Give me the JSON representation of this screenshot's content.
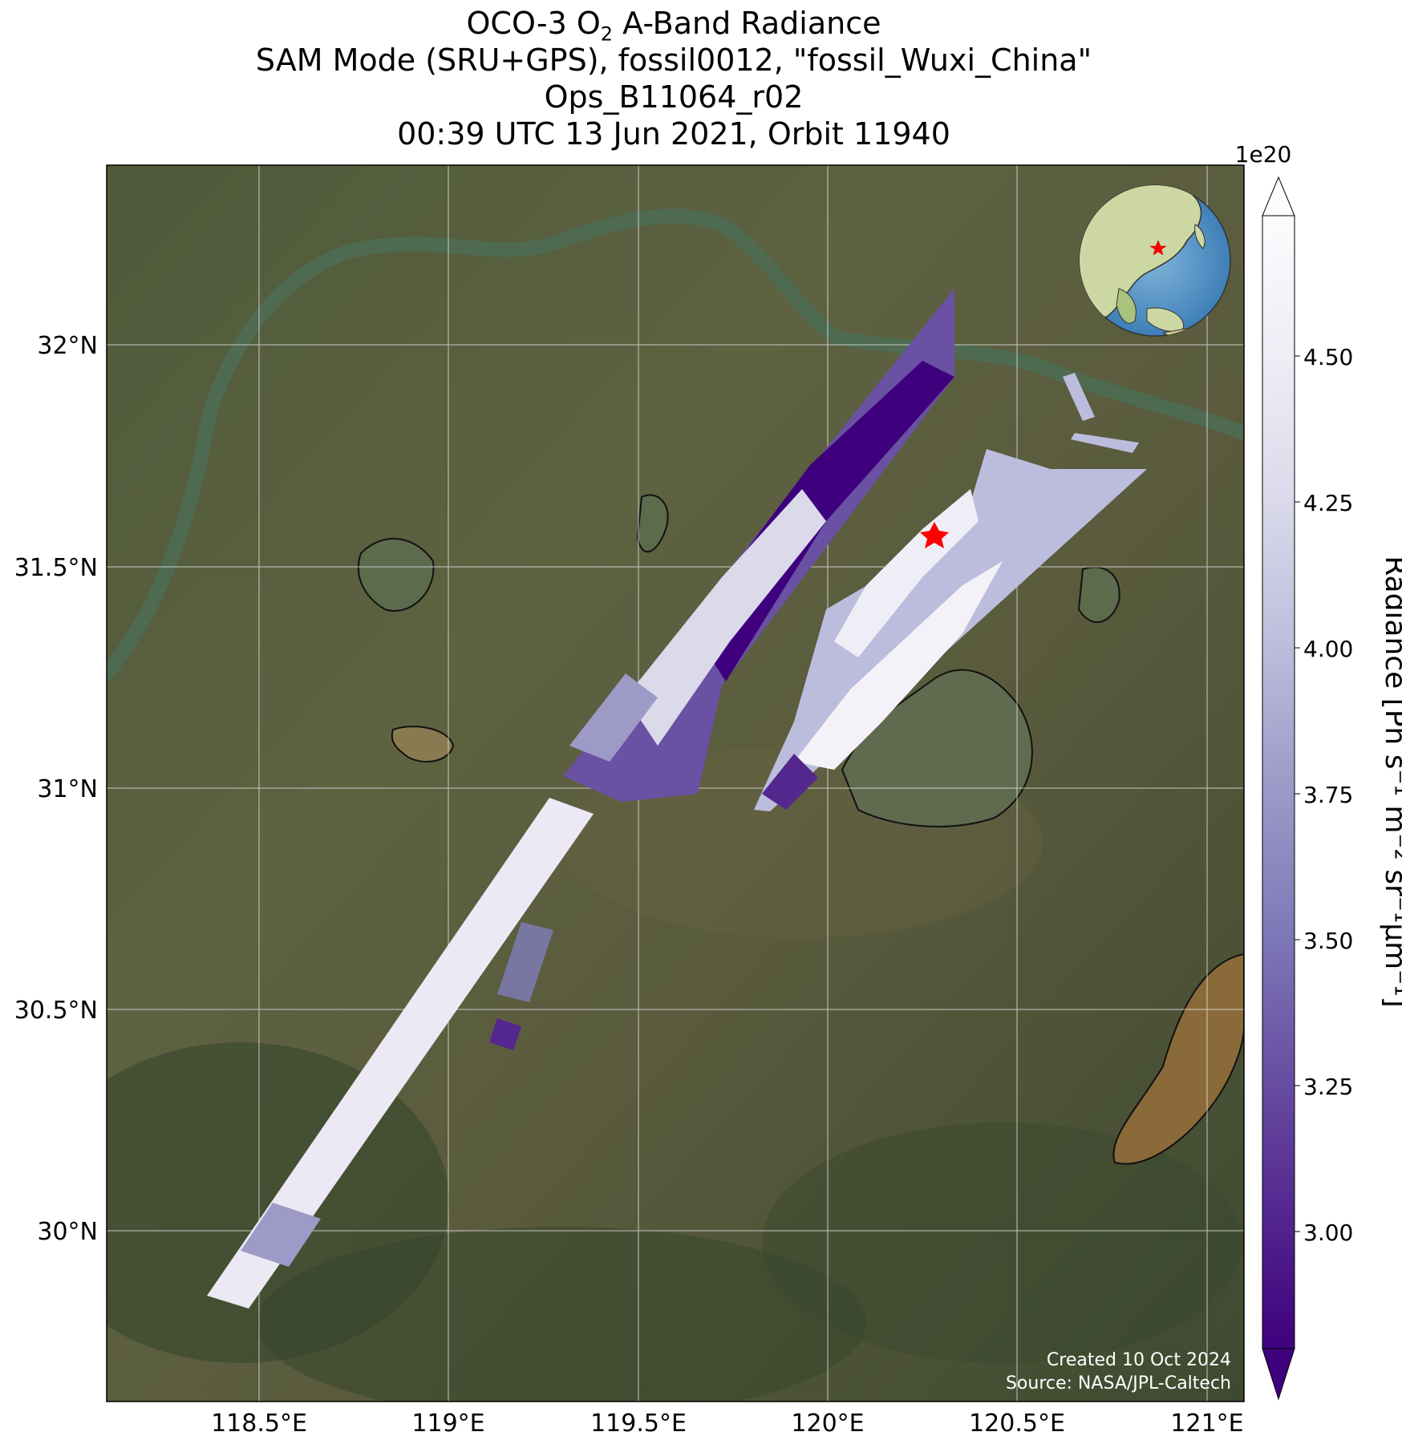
{
  "title": {
    "line1_prefix": "OCO-3 O",
    "line1_sub": "2",
    "line1_suffix": " A-Band Radiance",
    "line2": "SAM Mode (SRU+GPS), fossil0012, \"fossil_Wuxi_China\"",
    "line3": "Ops_B11064_r02",
    "line4": "00:39 UTC 13 Jun 2021, Orbit 11940"
  },
  "map": {
    "lat_ticks": [
      "32°N",
      "31.5°N",
      "31°N",
      "30.5°N",
      "30°N"
    ],
    "lon_ticks": [
      "118.5°E",
      "119°E",
      "119.5°E",
      "120°E",
      "120.5°E",
      "121°E"
    ],
    "target_marker": "red star",
    "inset": "globe centered on East Asia with red star"
  },
  "colorbar": {
    "multiplier": "1e20",
    "label": "Radiance [Ph s⁻¹ m⁻² sr⁻¹μm⁻¹]",
    "ticks": [
      "4.50",
      "4.25",
      "4.00",
      "3.75",
      "3.50",
      "3.25",
      "3.00"
    ],
    "colors": [
      "#3f007d",
      "#54278f",
      "#6a51a3",
      "#807dba",
      "#9e9ac8",
      "#bcbddc",
      "#dadaeb",
      "#efedf5",
      "#fcfbfd"
    ]
  },
  "credits": {
    "created": "Created 10 Oct 2024",
    "source": "Source: NASA/JPL-Caltech"
  }
}
